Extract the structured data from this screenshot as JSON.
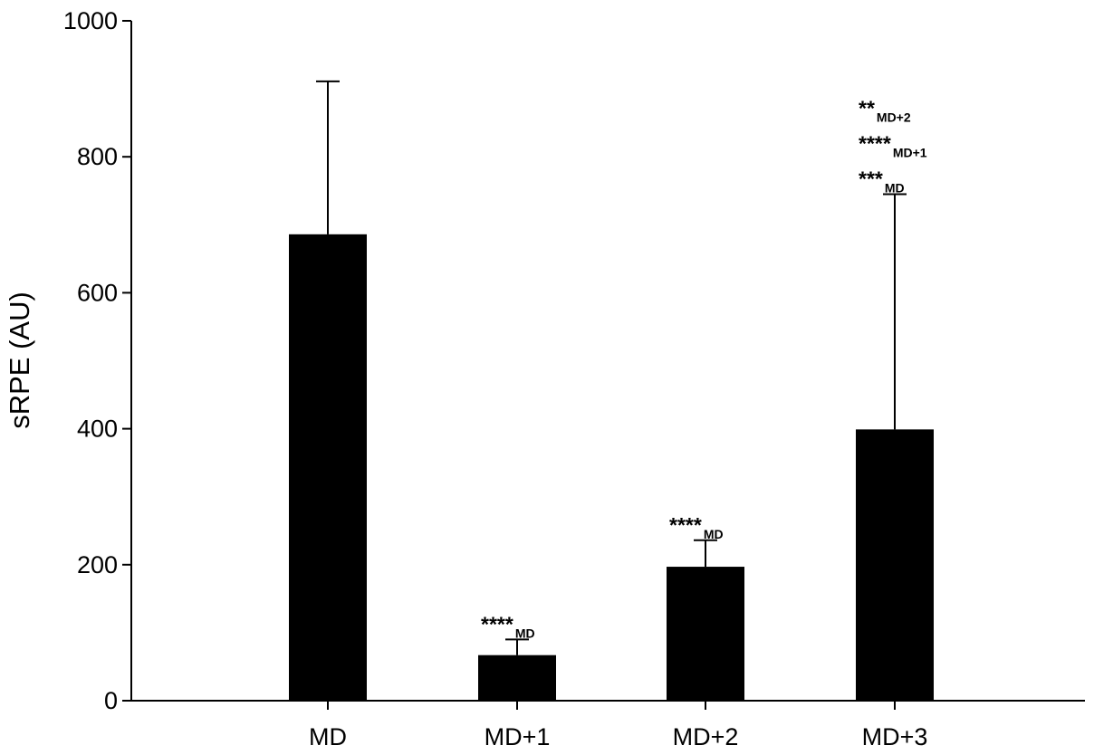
{
  "chart_data": {
    "type": "bar",
    "title": "",
    "xlabel": "",
    "ylabel": "sRPE (AU)",
    "ylim": [
      0,
      1000
    ],
    "yticks": [
      0,
      200,
      400,
      600,
      800,
      1000
    ],
    "categories": [
      "MD",
      "MD+1",
      "MD+2",
      "MD+3"
    ],
    "values": [
      686,
      67,
      197,
      399
    ],
    "error_upper": [
      911,
      90,
      236,
      745
    ],
    "grid": false,
    "legend": "none",
    "bar_color": "#000000",
    "annotations": [
      [],
      [
        {
          "stars": "****",
          "ref": "MD"
        }
      ],
      [
        {
          "stars": "****",
          "ref": "MD"
        }
      ],
      [
        {
          "stars": "***",
          "ref": "MD"
        },
        {
          "stars": "****",
          "ref": "MD+1"
        },
        {
          "stars": "**",
          "ref": "MD+2"
        }
      ]
    ]
  }
}
